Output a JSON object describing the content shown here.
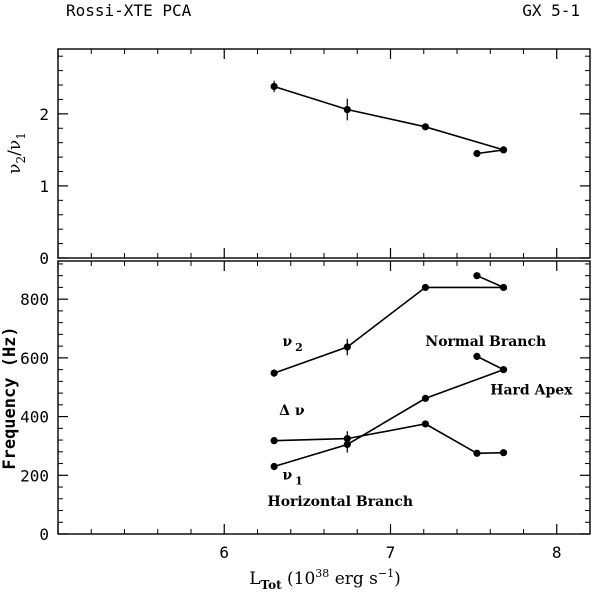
{
  "header": {
    "instrument": "Rossi-XTE    PCA",
    "source": "GX 5-1"
  },
  "chart_data": [
    {
      "type": "line",
      "panel": "top",
      "ylabel_parts": [
        "ν",
        "2",
        "/ν",
        "1"
      ],
      "xlim": [
        5.0,
        8.2
      ],
      "ylim": [
        0,
        2.9
      ],
      "yticks": [
        0,
        1,
        2
      ],
      "ytick_labels": [
        "0",
        "1",
        "2"
      ],
      "series": [
        {
          "points": [
            {
              "x": 6.3,
              "y": 2.38,
              "err": 0.08
            },
            {
              "x": 6.74,
              "y": 2.06,
              "err": 0.15
            },
            {
              "x": 7.21,
              "y": 1.82,
              "err": 0.04
            },
            {
              "x": 7.68,
              "y": 1.5,
              "err": 0.03
            },
            {
              "x": 7.52,
              "y": 1.45,
              "err": 0.03
            }
          ]
        }
      ]
    },
    {
      "type": "line",
      "panel": "bottom",
      "xlabel_parts": [
        "L",
        "Tot",
        " (10",
        "38",
        " erg s",
        "−1",
        ")"
      ],
      "ylabel": "Frequency (Hz)",
      "xlim": [
        5.0,
        8.2
      ],
      "ylim": [
        0,
        930
      ],
      "xticks": [
        6,
        7,
        8
      ],
      "xtick_labels": [
        "6",
        "7",
        "8"
      ],
      "yticks": [
        0,
        200,
        400,
        600,
        800
      ],
      "ytick_labels": [
        "0",
        "200",
        "400",
        "600",
        "800"
      ],
      "series": [
        {
          "points": [
            {
              "x": 6.3,
              "y": 548,
              "err": 12
            },
            {
              "x": 6.74,
              "y": 637,
              "err": 28
            },
            {
              "x": 7.21,
              "y": 840,
              "err": 8
            },
            {
              "x": 7.68,
              "y": 840,
              "err": 8
            },
            {
              "x": 7.52,
              "y": 880,
              "err": 8
            }
          ]
        },
        {
          "points": [
            {
              "x": 6.3,
              "y": 318,
              "err": 8
            },
            {
              "x": 6.74,
              "y": 325,
              "err": 25
            },
            {
              "x": 7.21,
              "y": 375,
              "err": 10
            },
            {
              "x": 7.52,
              "y": 275,
              "err": 10
            },
            {
              "x": 7.68,
              "y": 277,
              "err": 10
            }
          ]
        },
        {
          "points": [
            {
              "x": 6.3,
              "y": 230,
              "err": 8
            },
            {
              "x": 6.74,
              "y": 305,
              "err": 28
            },
            {
              "x": 7.21,
              "y": 462,
              "err": 8
            },
            {
              "x": 7.68,
              "y": 560,
              "err": 8
            },
            {
              "x": 7.52,
              "y": 605,
              "err": 8
            }
          ]
        }
      ],
      "annotations": [
        {
          "id": "nu2",
          "greek": "ν",
          "sub": "2",
          "x": 6.35,
          "y": 640
        },
        {
          "id": "dnu",
          "text": "Δ ν",
          "x": 6.33,
          "y": 405
        },
        {
          "id": "nu1",
          "greek": "ν",
          "sub": "1",
          "x": 6.35,
          "y": 185
        },
        {
          "id": "normal",
          "text": "Normal Branch",
          "x": 7.21,
          "y": 640
        },
        {
          "id": "hardapex",
          "text": "Hard Apex",
          "x": 7.6,
          "y": 475
        },
        {
          "id": "horizontal",
          "text": "Horizontal Branch",
          "x": 6.26,
          "y": 95
        }
      ]
    }
  ]
}
